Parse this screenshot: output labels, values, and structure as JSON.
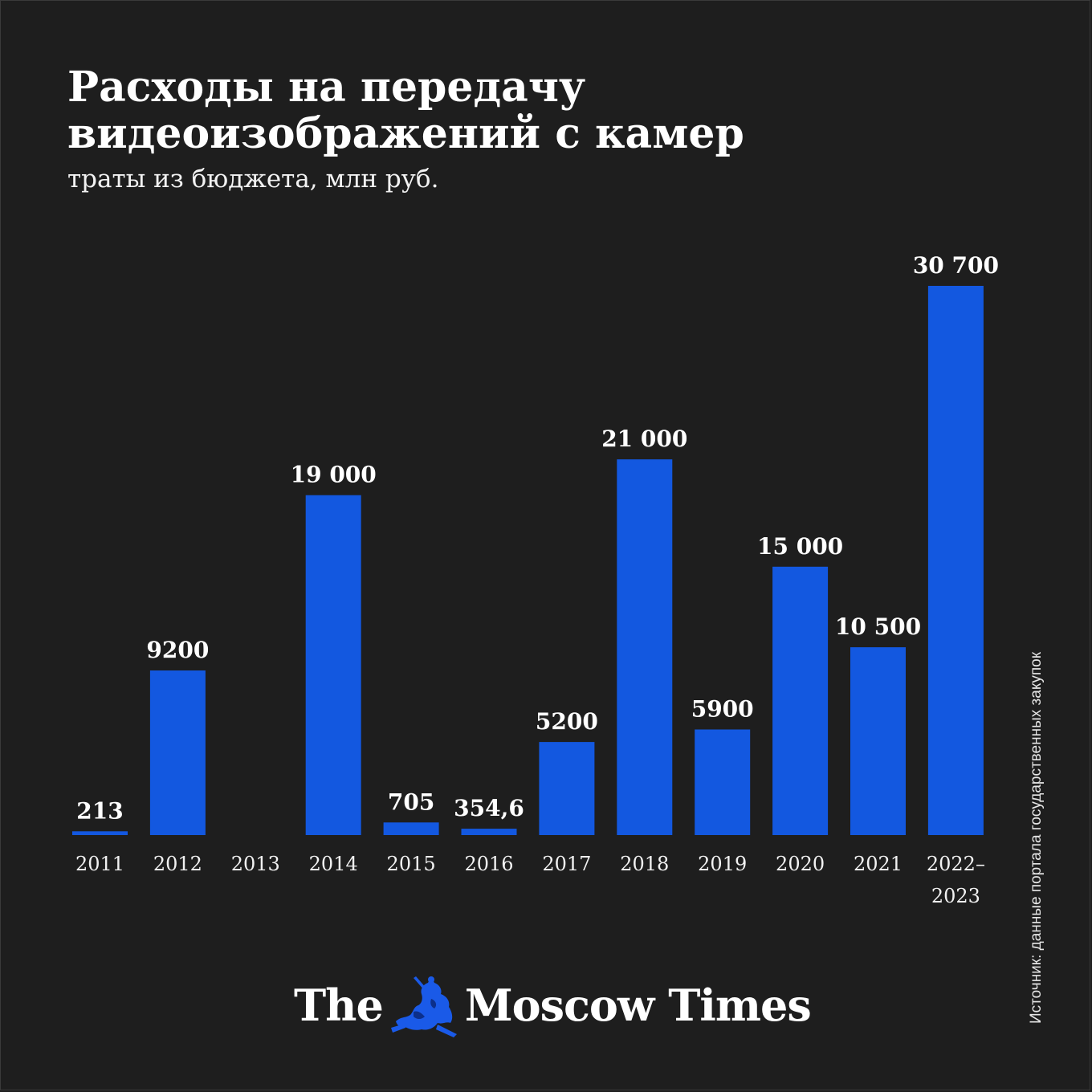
{
  "header": {
    "title": "Расходы на передачу видеоизображений с камер",
    "subtitle": "траты из бюджета, млн руб."
  },
  "source": "Источник: данные портала государственных закупок",
  "logo": {
    "left_text": "The",
    "right_text": "Moscow Times",
    "emblem_icon": "st-george-emblem-icon"
  },
  "colors": {
    "background": "#1e1e1e",
    "bar": "#1358e0",
    "text": "#ffffff"
  },
  "chart_data": {
    "type": "bar",
    "categories": [
      "2011",
      "2012",
      "2013",
      "2014",
      "2015",
      "2016",
      "2017",
      "2018",
      "2019",
      "2020",
      "2021",
      "2022–2023"
    ],
    "values": [
      213,
      9200,
      null,
      19000,
      705,
      354.6,
      5200,
      21000,
      5900,
      15000,
      10500,
      30700
    ],
    "value_labels": [
      "213",
      "9200",
      "",
      "19 000",
      "705",
      "354,6",
      "5200",
      "21 000",
      "5900",
      "15 000",
      "10 500",
      "30 700"
    ],
    "title": "Расходы на передачу видеоизображений с камер",
    "subtitle": "траты из бюджета, млн руб.",
    "ylim": [
      0,
      30700
    ],
    "grid": false,
    "legend": "none"
  }
}
